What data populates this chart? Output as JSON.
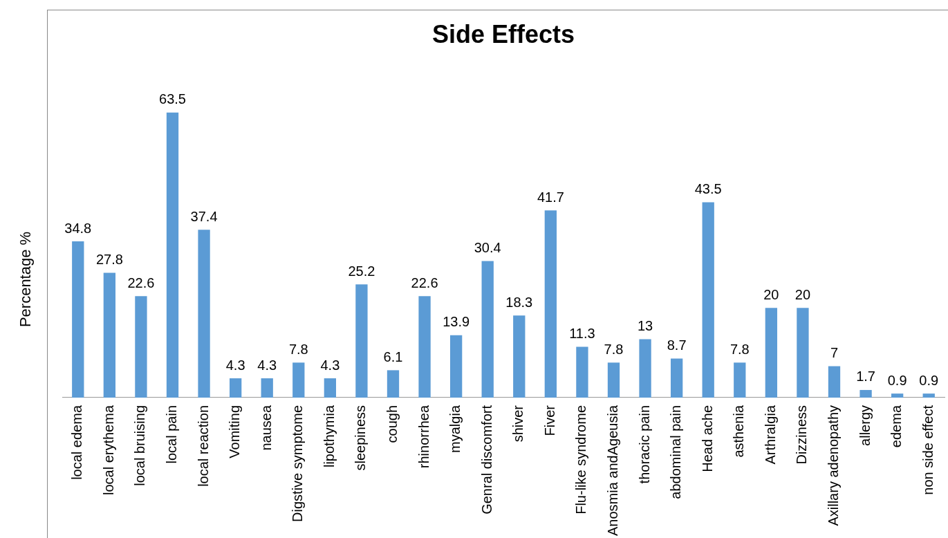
{
  "chart_data": {
    "type": "bar",
    "title": "Side Effects",
    "ylabel": "Percentage %",
    "categories": [
      "local edema",
      "local erythema",
      "local bruising",
      "local pain",
      "local reaction",
      "Vomiting",
      "nausea",
      "Digstive symptome",
      "lipothymia",
      "sleepiness",
      "cough",
      "rhinorrhea",
      "myalgia",
      "Genral discomfort",
      "shiver",
      "Fiver",
      "Flu-like syndrome",
      "Anosmia andAgeusia",
      "thoracic pain",
      "abdominal pain",
      "Head ache",
      "asthenia",
      "Arthralgia",
      "Dizziness",
      "Axillary adenopathy",
      "allergy",
      "edema",
      "non side effect"
    ],
    "values": [
      34.8,
      27.8,
      22.6,
      63.5,
      37.4,
      4.3,
      4.3,
      7.8,
      4.3,
      25.2,
      6.1,
      22.6,
      13.9,
      30.4,
      18.3,
      41.7,
      11.3,
      7.8,
      13,
      8.7,
      43.5,
      7.8,
      20,
      20,
      7,
      1.7,
      0.9,
      0.9
    ],
    "color": "#5b9bd5",
    "data_labels": true
  }
}
